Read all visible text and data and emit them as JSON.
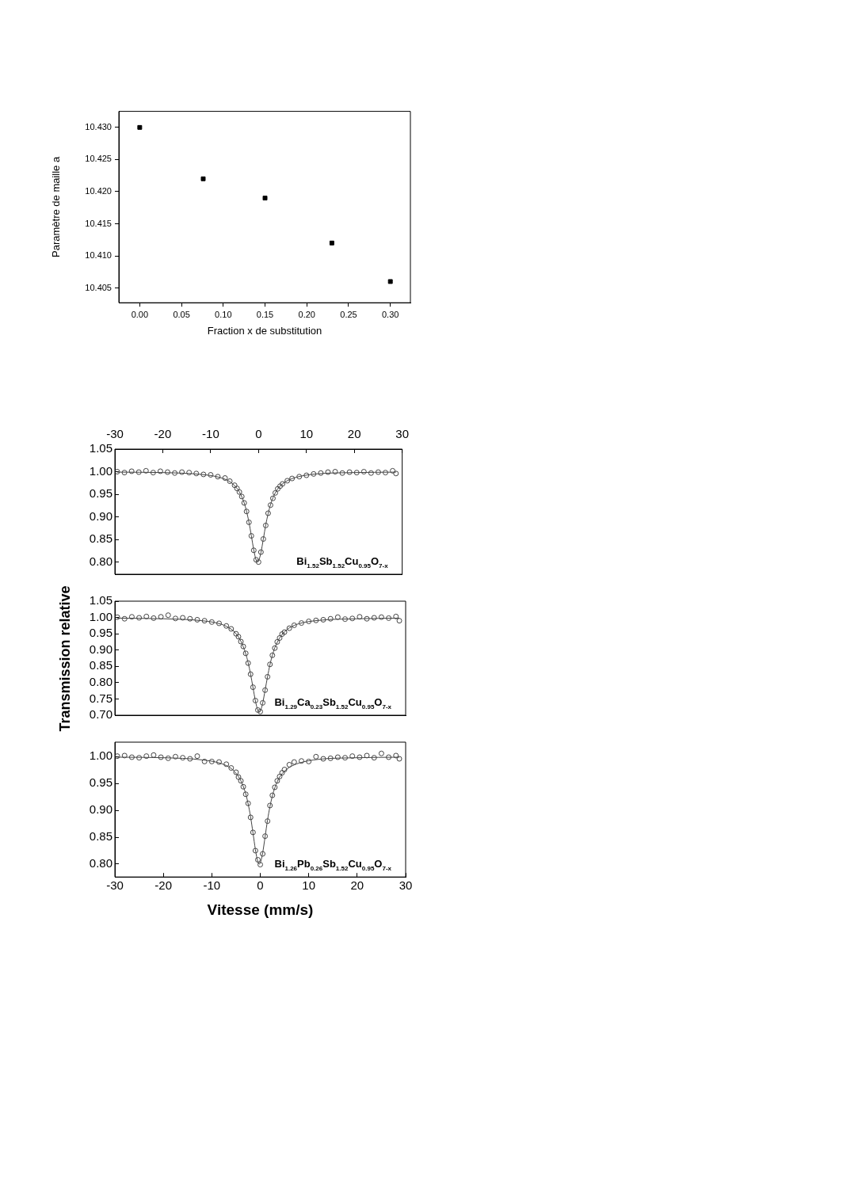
{
  "chart_data": [
    {
      "type": "scatter",
      "xlabel": "Fraction x de substitution",
      "ylabel": "Paramètre de maille a",
      "marker": "square",
      "legend": false,
      "xlim": [
        -0.025,
        0.324
      ],
      "xticks": [
        {
          "value": 0,
          "label": "0.00"
        },
        {
          "value": 0.05,
          "label": "0.05"
        },
        {
          "value": 0.1,
          "label": "0.10"
        },
        {
          "value": 0.15,
          "label": "0.15"
        },
        {
          "value": 0.2,
          "label": "0.20"
        },
        {
          "value": 0.25,
          "label": "0.25"
        },
        {
          "value": 0.3,
          "label": "0.30"
        }
      ],
      "ylim": [
        10.4027,
        10.4325
      ],
      "yticks": [
        {
          "value": 10.405,
          "label": "10.405"
        },
        {
          "value": 10.41,
          "label": "10.410"
        },
        {
          "value": 10.415,
          "label": "10.415"
        },
        {
          "value": 10.42,
          "label": "10.420"
        },
        {
          "value": 10.425,
          "label": "10.425"
        },
        {
          "value": 10.43,
          "label": "10.430"
        }
      ],
      "series": [
        {
          "color": "#000000",
          "x": [
            0,
            0.076,
            0.15,
            0.23,
            0.3
          ],
          "values": [
            10.43,
            10.422,
            10.419,
            10.412,
            10.406
          ]
        }
      ]
    },
    {
      "type": "scatter",
      "legend": false,
      "annotations": [
        "Bi$_{1.52}$Sb$_{1.52}$Cu$_{0.95}$O$_{7-x}$"
      ],
      "xlim": [
        -30,
        30
      ],
      "x2lim": [
        -30,
        30
      ],
      "x2ticks": [
        -30,
        -20,
        -10,
        0,
        10,
        20,
        30
      ],
      "ylim": [
        0.773,
        1.05
      ],
      "yticks": [
        {
          "value": 0.8,
          "label": "0.80"
        },
        {
          "value": 0.85,
          "label": "0.85"
        },
        {
          "value": 0.9,
          "label": "0.90"
        },
        {
          "value": 0.95,
          "label": "0.95"
        },
        {
          "value": 1,
          "label": "1.00"
        },
        {
          "value": 1.05,
          "label": "1.05"
        }
      ],
      "series": [
        {
          "type": "scatter",
          "marker": "circle",
          "color": "#444444",
          "x": [
            -29.5,
            -28,
            -26.5,
            -25,
            -23.5,
            -22,
            -20.5,
            -19,
            -17.5,
            -16,
            -14.5,
            -13,
            -11.5,
            -10,
            -8.5,
            -7,
            -6,
            -5,
            -4.5,
            -4,
            -3.5,
            -3,
            -2.5,
            -2,
            -1.5,
            -1,
            -0.5,
            0,
            0.5,
            1,
            1.5,
            2,
            2.5,
            3,
            3.5,
            4,
            4.5,
            5,
            6,
            7,
            8.5,
            10,
            11.5,
            13,
            14.5,
            16,
            17.5,
            19,
            20.5,
            22,
            23.5,
            25,
            26.5,
            28,
            28.7
          ],
          "values": [
            1.0,
            0.998,
            1.001,
            0.999,
            1.002,
            0.998,
            1.001,
            0.999,
            0.997,
            0.999,
            0.998,
            0.996,
            0.994,
            0.993,
            0.989,
            0.986,
            0.979,
            0.97,
            0.963,
            0.955,
            0.945,
            0.931,
            0.912,
            0.888,
            0.858,
            0.826,
            0.805,
            0.8,
            0.822,
            0.851,
            0.881,
            0.908,
            0.926,
            0.941,
            0.953,
            0.962,
            0.968,
            0.973,
            0.98,
            0.985,
            0.989,
            0.992,
            0.995,
            0.997,
            0.999,
            1.0,
            0.997,
            0.999,
            0.998,
            1.0,
            0.997,
            0.999,
            0.998,
            1.002,
            0.996
          ]
        },
        {
          "type": "line",
          "marker": "none",
          "color": "#444444",
          "x": [
            -29.5,
            -20,
            -12,
            -8,
            -6,
            -5,
            -4,
            -3,
            -2.5,
            -2,
            -1.5,
            -1,
            -0.5,
            -0.2,
            0,
            0.5,
            1,
            1.5,
            2,
            2.5,
            3,
            4,
            5,
            6,
            8,
            12,
            20,
            28.7
          ],
          "values": [
            0.999,
            0.998,
            0.994,
            0.987,
            0.978,
            0.969,
            0.955,
            0.931,
            0.912,
            0.888,
            0.858,
            0.827,
            0.804,
            0.8,
            0.802,
            0.821,
            0.851,
            0.882,
            0.907,
            0.927,
            0.942,
            0.962,
            0.973,
            0.98,
            0.988,
            0.995,
            0.998,
            0.999
          ]
        }
      ]
    },
    {
      "type": "scatter",
      "legend": false,
      "tick_labels": "y",
      "ylabel": "Transmission relative",
      "annotations": [
        "Bi$_{1.29}$Ca$_{0.23}$Sb$_{1.52}$Cu$_{0.95}$O$_{7-x}$"
      ],
      "xlim": [
        -30,
        30
      ],
      "ylim": [
        0.7,
        1.05
      ],
      "yticks": [
        {
          "value": 0.7,
          "label": "0.70"
        },
        {
          "value": 0.75,
          "label": "0.75"
        },
        {
          "value": 0.8,
          "label": "0.80"
        },
        {
          "value": 0.85,
          "label": "0.85"
        },
        {
          "value": 0.9,
          "label": "0.90"
        },
        {
          "value": 0.95,
          "label": "0.95"
        },
        {
          "value": 1,
          "label": "1.00"
        },
        {
          "value": 1.05,
          "label": "1.05"
        }
      ],
      "series": [
        {
          "type": "scatter",
          "marker": "circle",
          "color": "#444444",
          "x": [
            -29.5,
            -28,
            -26.5,
            -25,
            -23.5,
            -22,
            -20.5,
            -19,
            -17.5,
            -16,
            -14.5,
            -13,
            -11.5,
            -10,
            -8.5,
            -7,
            -6,
            -5,
            -4.5,
            -4,
            -3.5,
            -3,
            -2.5,
            -2,
            -1.5,
            -1,
            -0.5,
            0,
            0.5,
            1,
            1.5,
            2,
            2.5,
            3,
            3.5,
            4,
            4.5,
            5,
            6,
            7,
            8.5,
            10,
            11.5,
            13,
            14.5,
            16,
            17.5,
            19,
            20.5,
            22,
            23.5,
            25,
            26.5,
            28,
            28.7
          ],
          "values": [
            1.001,
            0.996,
            1.002,
            0.999,
            1.003,
            0.998,
            1.002,
            1.007,
            0.997,
            0.999,
            0.996,
            0.993,
            0.99,
            0.986,
            0.982,
            0.974,
            0.965,
            0.95,
            0.941,
            0.926,
            0.911,
            0.89,
            0.86,
            0.826,
            0.786,
            0.745,
            0.716,
            0.711,
            0.738,
            0.777,
            0.818,
            0.856,
            0.884,
            0.906,
            0.925,
            0.937,
            0.949,
            0.955,
            0.967,
            0.976,
            0.983,
            0.988,
            0.991,
            0.993,
            0.996,
            1.001,
            0.995,
            0.997,
            1.002,
            0.996,
            0.999,
            1.001,
            0.998,
            1.003,
            0.99
          ]
        },
        {
          "type": "line",
          "marker": "none",
          "color": "#444444",
          "x": [
            -29.5,
            -20,
            -12,
            -8,
            -6,
            -5,
            -4,
            -3,
            -2.5,
            -2,
            -1.5,
            -1,
            -0.5,
            -0.2,
            0,
            0.5,
            1,
            1.5,
            2,
            2.5,
            3,
            4,
            5,
            6,
            8,
            12,
            20,
            28.7
          ],
          "values": [
            0.998,
            0.996,
            0.99,
            0.979,
            0.964,
            0.95,
            0.927,
            0.889,
            0.861,
            0.826,
            0.785,
            0.744,
            0.715,
            0.71,
            0.712,
            0.737,
            0.777,
            0.818,
            0.855,
            0.884,
            0.907,
            0.937,
            0.956,
            0.968,
            0.981,
            0.991,
            0.996,
            0.998
          ]
        }
      ]
    },
    {
      "type": "scatter",
      "legend": false,
      "xlabel": "Vitesse (mm/s)",
      "annotations": [
        "Bi$_{1.26}$Pb$_{0.26}$Sb$_{1.52}$Cu$_{0.95}$O$_{7-x}$"
      ],
      "xlim": [
        -30,
        30
      ],
      "xticks": [
        -30,
        -20,
        -10,
        0,
        10,
        20,
        30
      ],
      "ylim": [
        0.776,
        1.027
      ],
      "yticks": [
        {
          "value": 0.8,
          "label": "0.80"
        },
        {
          "value": 0.85,
          "label": "0.85"
        },
        {
          "value": 0.9,
          "label": "0.90"
        },
        {
          "value": 0.95,
          "label": "0.95"
        },
        {
          "value": 1,
          "label": "1.00"
        }
      ],
      "series": [
        {
          "type": "scatter",
          "marker": "circle",
          "color": "#444444",
          "x": [
            -29.5,
            -28,
            -26.5,
            -25,
            -23.5,
            -22,
            -20.5,
            -19,
            -17.5,
            -16,
            -14.5,
            -13,
            -11.5,
            -10,
            -8.5,
            -7,
            -6,
            -5,
            -4.5,
            -4,
            -3.5,
            -3,
            -2.5,
            -2,
            -1.5,
            -1,
            -0.5,
            0,
            0.5,
            1,
            1.5,
            2,
            2.5,
            3,
            3.5,
            4,
            4.5,
            5,
            6,
            7,
            8.5,
            10,
            11.5,
            13,
            14.5,
            16,
            17.5,
            19,
            20.5,
            22,
            23.5,
            25,
            26.5,
            28,
            28.7
          ],
          "values": [
            1.001,
            1.002,
            0.999,
            0.998,
            1.001,
            1.003,
            0.999,
            0.997,
            1.0,
            0.998,
            0.996,
            1.001,
            0.991,
            0.991,
            0.99,
            0.986,
            0.979,
            0.971,
            0.962,
            0.955,
            0.944,
            0.93,
            0.913,
            0.887,
            0.859,
            0.825,
            0.808,
            0.799,
            0.819,
            0.852,
            0.88,
            0.909,
            0.928,
            0.943,
            0.955,
            0.963,
            0.97,
            0.976,
            0.985,
            0.99,
            0.992,
            0.991,
            1.0,
            0.996,
            0.997,
            0.999,
            0.998,
            1.001,
            0.999,
            1.002,
            0.998,
            1.006,
            0.999,
            1.002,
            0.996
          ]
        },
        {
          "type": "line",
          "marker": "none",
          "color": "#444444",
          "x": [
            -29.5,
            -20,
            -12,
            -8,
            -6,
            -5,
            -4,
            -3,
            -2.5,
            -2,
            -1.5,
            -1,
            -0.5,
            -0.2,
            0,
            0.5,
            1,
            1.5,
            2,
            2.5,
            3,
            4,
            5,
            6,
            8,
            12,
            20,
            28.7
          ],
          "values": [
            0.999,
            0.998,
            0.994,
            0.987,
            0.978,
            0.969,
            0.955,
            0.931,
            0.912,
            0.888,
            0.858,
            0.827,
            0.804,
            0.8,
            0.802,
            0.821,
            0.851,
            0.882,
            0.907,
            0.927,
            0.942,
            0.962,
            0.973,
            0.98,
            0.988,
            0.995,
            0.998,
            0.999
          ]
        }
      ]
    }
  ]
}
